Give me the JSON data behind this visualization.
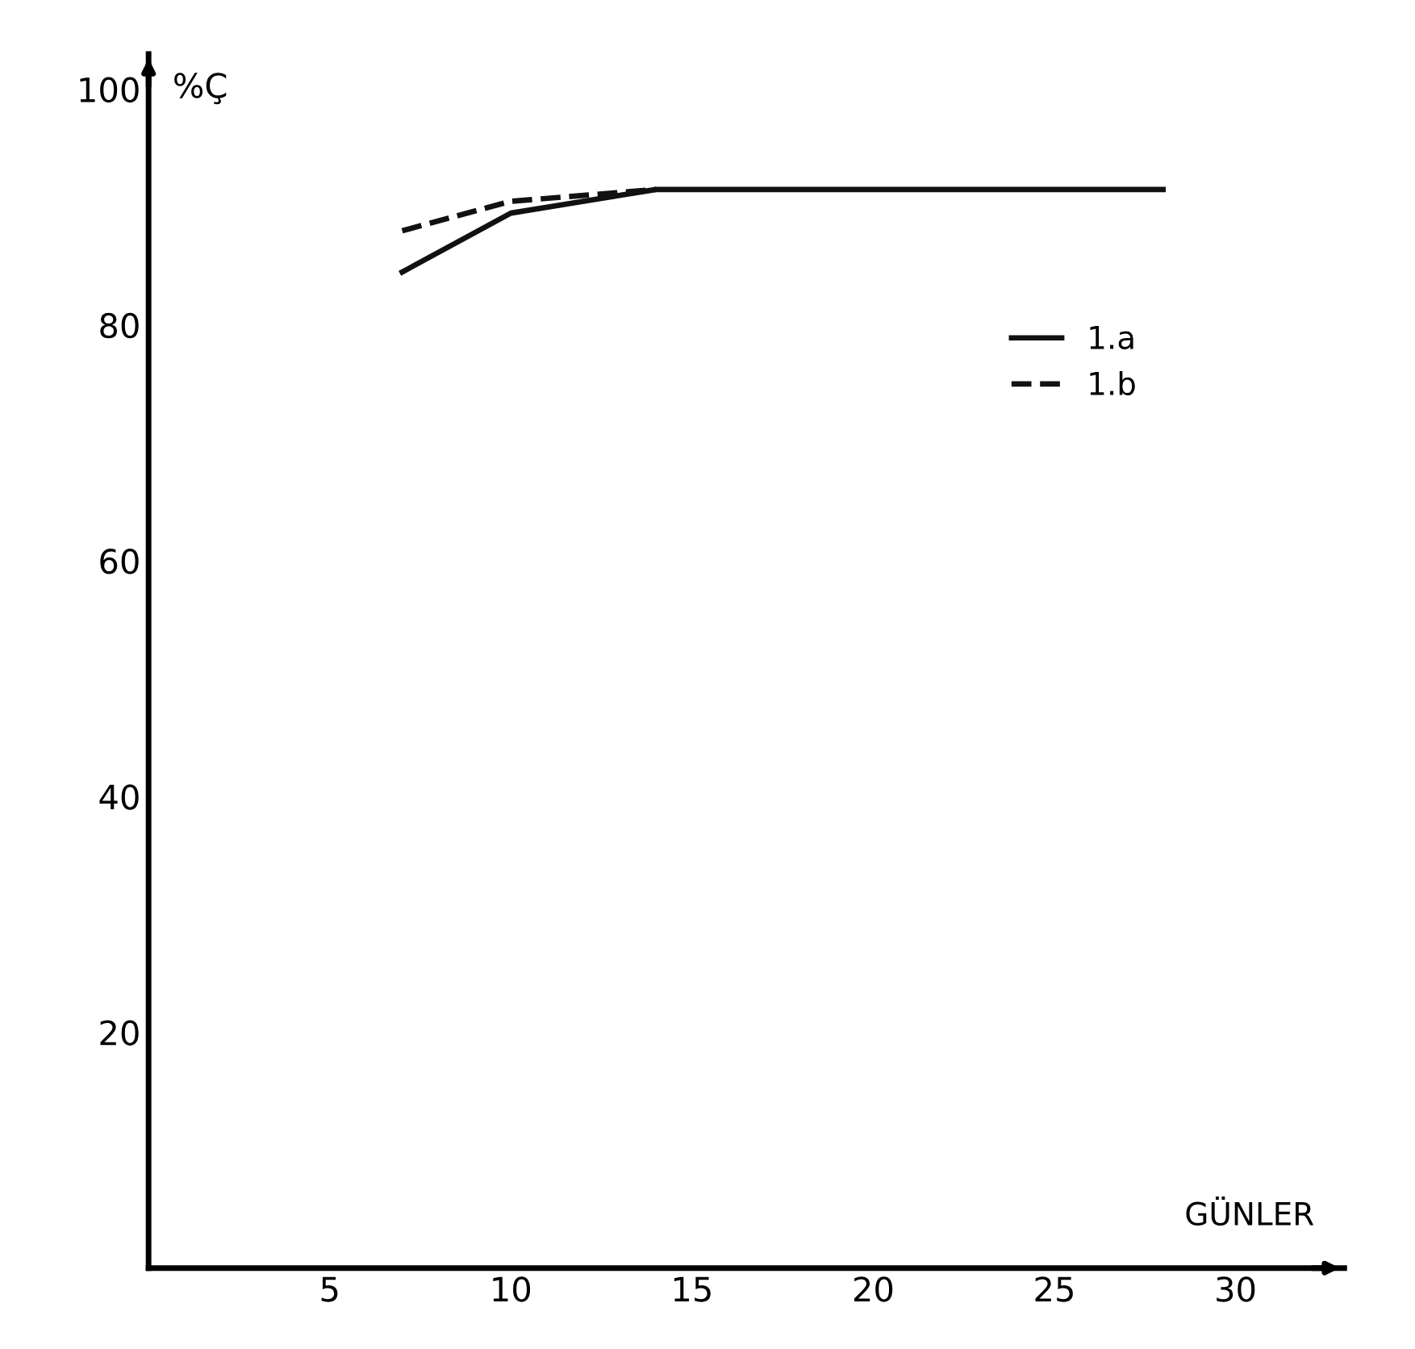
{
  "chart_data": {
    "type": "line",
    "xlabel": "GÜNLER",
    "ylabel": "%Ç",
    "series": [
      {
        "name": "1.a",
        "color": "#111111",
        "line_style": "solid",
        "x": [
          7,
          10,
          14,
          28
        ],
        "values": [
          84.5,
          89.5,
          91.5,
          91.5
        ]
      },
      {
        "name": "1.b",
        "color": "#111111",
        "line_style": "dashed",
        "x": [
          7,
          10,
          14
        ],
        "values": [
          88,
          90.5,
          91.5
        ]
      }
    ],
    "xlim": [
      0,
      33
    ],
    "ylim": [
      0,
      103
    ],
    "xticks": [
      5,
      10,
      15,
      20,
      25,
      30
    ],
    "yticks": [
      20,
      40,
      60,
      80,
      100
    ],
    "grid": false,
    "legend": "top right",
    "marker": "none"
  }
}
